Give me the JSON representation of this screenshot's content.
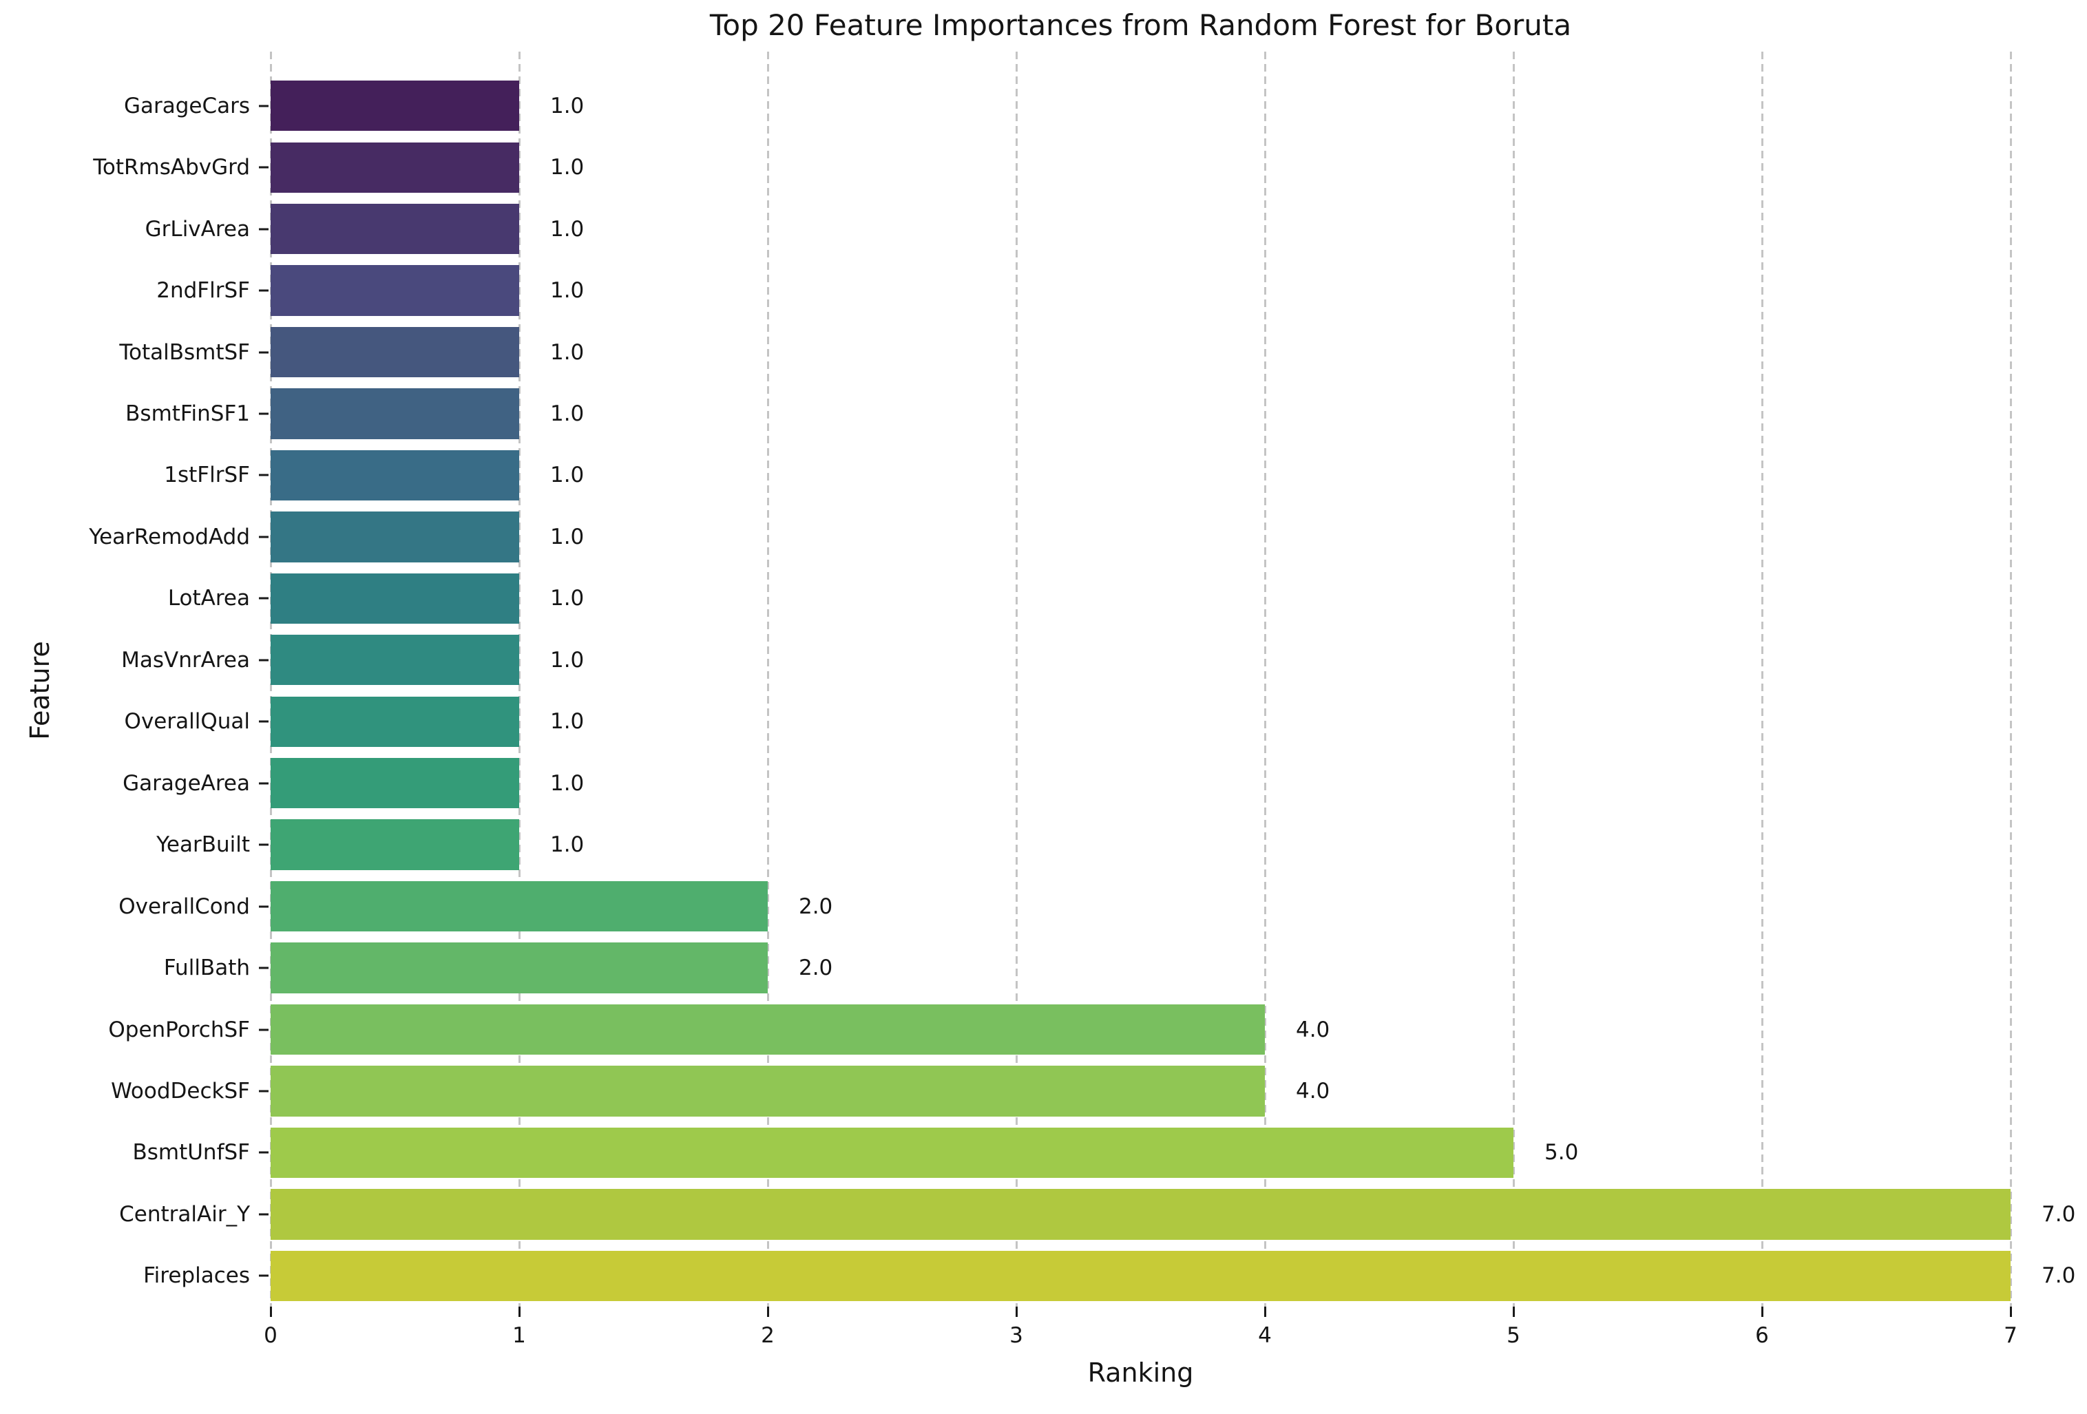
{
  "title": "Top 20 Feature Importances from Random Forest for Boruta",
  "xlabel": "Ranking",
  "ylabel": "Feature",
  "chart_data": {
    "type": "bar",
    "orientation": "horizontal",
    "title": "Top 20 Feature Importances from Random Forest for Boruta",
    "xlabel": "Ranking",
    "ylabel": "Feature",
    "xlim": [
      0,
      7
    ],
    "xticks": [
      "0",
      "1",
      "2",
      "3",
      "4",
      "5",
      "6",
      "7"
    ],
    "grid": "dashed-vertical",
    "grid_color": "#c4c4c4",
    "text_color": "#151515",
    "categories": [
      "GarageCars",
      "TotRmsAbvGrd",
      "GrLivArea",
      "2ndFlrSF",
      "TotalBsmtSF",
      "BsmtFinSF1",
      "1stFlrSF",
      "YearRemodAdd",
      "LotArea",
      "MasVnrArea",
      "OverallQual",
      "GarageArea",
      "YearBuilt",
      "OverallCond",
      "FullBath",
      "OpenPorchSF",
      "WoodDeckSF",
      "BsmtUnfSF",
      "CentralAir_Y",
      "Fireplaces"
    ],
    "values": [
      1.0,
      1.0,
      1.0,
      1.0,
      1.0,
      1.0,
      1.0,
      1.0,
      1.0,
      1.0,
      1.0,
      1.0,
      1.0,
      2.0,
      2.0,
      4.0,
      4.0,
      5.0,
      7.0,
      7.0
    ],
    "bar_labels": [
      "1.0",
      "1.0",
      "1.0",
      "1.0",
      "1.0",
      "1.0",
      "1.0",
      "1.0",
      "1.0",
      "1.0",
      "1.0",
      "1.0",
      "1.0",
      "2.0",
      "2.0",
      "4.0",
      "4.0",
      "5.0",
      "7.0",
      "7.0"
    ],
    "bar_colors": [
      "#44205A",
      "#472B63",
      "#48396F",
      "#4A497D",
      "#45577E",
      "#406283",
      "#396C87",
      "#347685",
      "#2F7F83",
      "#2F8A81",
      "#30937D",
      "#349C78",
      "#3EA573",
      "#4FAE6E",
      "#63B768",
      "#79BF5F",
      "#90C654",
      "#9ECA4B",
      "#AFC840",
      "#C7CB37"
    ]
  }
}
